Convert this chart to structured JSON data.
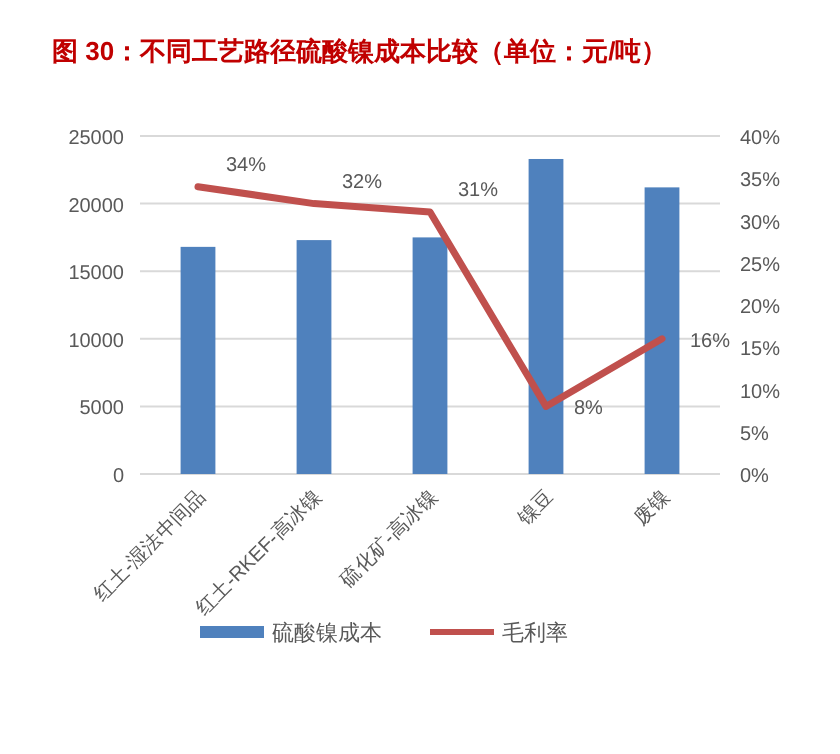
{
  "chart_data": {
    "type": "bar",
    "title": "图 30：不同工艺路径硫酸镍成本比较（单位：元/吨）",
    "categories": [
      "红土-湿法中间品",
      "红土-RKEF-高冰镍",
      "硫化矿-高冰镍",
      "镍豆",
      "废镍"
    ],
    "series": [
      {
        "name": "硫酸镍成本",
        "color": "#4f81bd",
        "values": [
          16800,
          17300,
          17500,
          23300,
          21200
        ]
      },
      {
        "name": "毛利率",
        "type": "line",
        "axis": "y2",
        "color": "#c0504d",
        "values": [
          34,
          32,
          31,
          8,
          16
        ],
        "value_labels": [
          "34%",
          "32%",
          "31%",
          "8%",
          "16%"
        ]
      }
    ],
    "ylim": [
      0,
      25000
    ],
    "yticks": [
      0,
      5000,
      10000,
      15000,
      20000,
      25000
    ],
    "y2lim": [
      0,
      40
    ],
    "y2ticks": [
      {
        "value": 0,
        "label": "0%"
      },
      {
        "value": 5,
        "label": "5%"
      },
      {
        "value": 10,
        "label": "10%"
      },
      {
        "value": 15,
        "label": "15%"
      },
      {
        "value": 20,
        "label": "20%"
      },
      {
        "value": 25,
        "label": "25%"
      },
      {
        "value": 30,
        "label": "30%"
      },
      {
        "value": 35,
        "label": "35%"
      },
      {
        "value": 40,
        "label": "40%"
      }
    ],
    "grid": "y",
    "legend": "bottom"
  }
}
